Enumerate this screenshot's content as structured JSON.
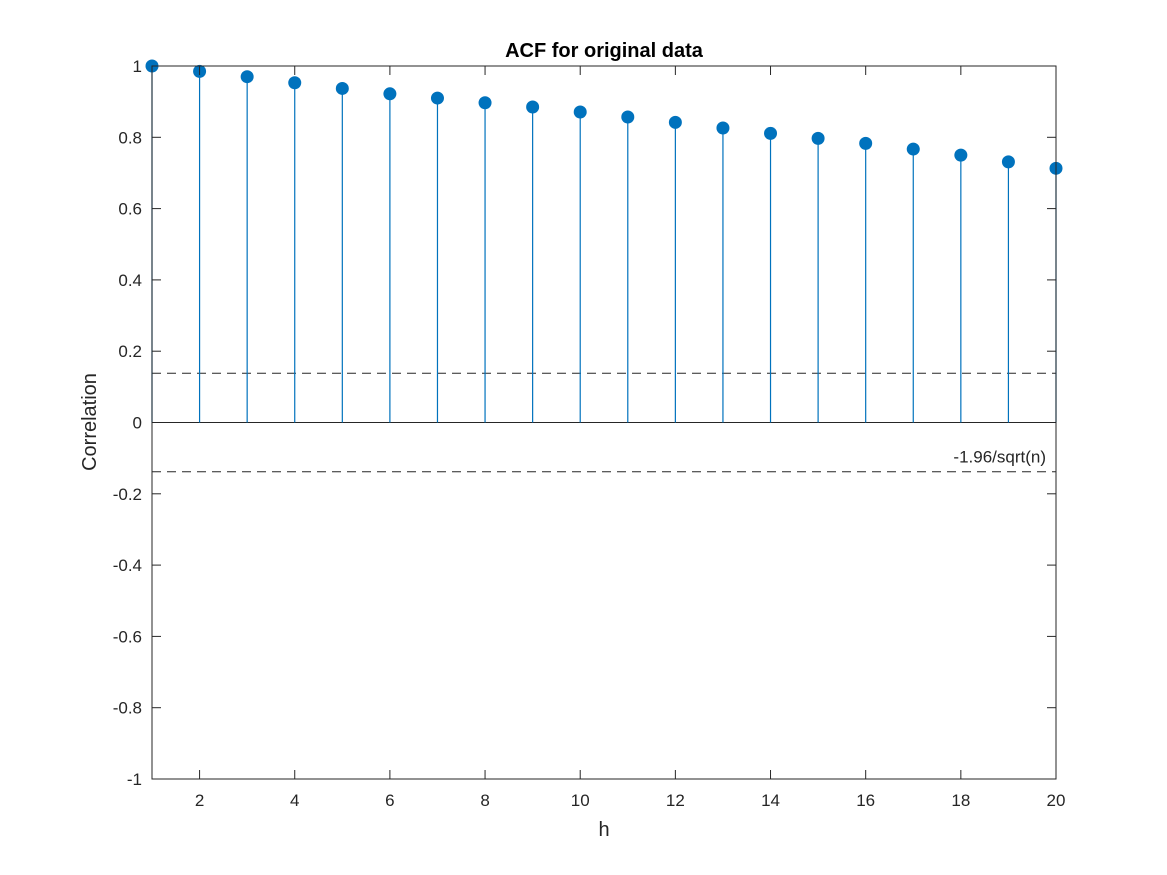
{
  "chart_data": {
    "type": "stem",
    "title": "ACF for original data",
    "xlabel": "h",
    "ylabel": "Correlation",
    "xlim": [
      1,
      20
    ],
    "ylim": [
      -1,
      1
    ],
    "xticks": [
      2,
      4,
      6,
      8,
      10,
      12,
      14,
      16,
      18,
      20
    ],
    "yticks": [
      -1,
      -0.8,
      -0.6,
      -0.4,
      -0.2,
      0,
      0.2,
      0.4,
      0.6,
      0.8,
      1
    ],
    "x": [
      1,
      2,
      3,
      4,
      5,
      6,
      7,
      8,
      9,
      10,
      11,
      12,
      13,
      14,
      15,
      16,
      17,
      18,
      19,
      20
    ],
    "y": [
      1.0,
      0.985,
      0.97,
      0.953,
      0.937,
      0.922,
      0.91,
      0.897,
      0.885,
      0.871,
      0.857,
      0.842,
      0.826,
      0.811,
      0.797,
      0.783,
      0.767,
      0.75,
      0.731,
      0.713
    ],
    "bounds": {
      "upper": 0.138,
      "lower": -0.138,
      "label": "-1.96/sqrt(n)"
    },
    "grid": false,
    "colors": {
      "stem": "#0072BD",
      "bounds": "#262626",
      "axes": "#262626"
    }
  }
}
